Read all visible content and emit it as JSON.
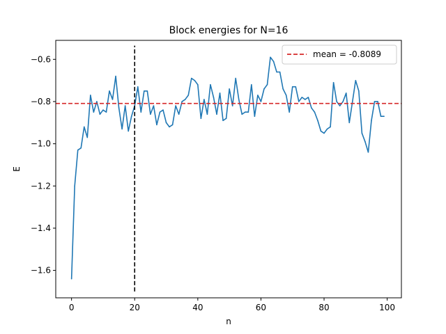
{
  "chart_data": {
    "type": "line",
    "title": "Block energies for N=16",
    "xlabel": "n",
    "ylabel": "E",
    "xlim": [
      -5.0,
      104.5
    ],
    "ylim": [
      -1.73,
      -0.51
    ],
    "xticks": [
      0,
      20,
      40,
      60,
      80,
      100
    ],
    "yticks": [
      -1.6,
      -1.4,
      -1.2,
      -1.0,
      -0.8,
      -0.6
    ],
    "ytick_labels": [
      "−1.6",
      "−1.4",
      "−1.2",
      "−1.0",
      "−0.8",
      "−0.6"
    ],
    "grid": false,
    "legend_position": "top-right",
    "series": [
      {
        "color": "#1f77b4",
        "x": [
          0,
          1,
          2,
          3,
          4,
          5,
          6,
          7,
          8,
          9,
          10,
          11,
          12,
          13,
          14,
          15,
          16,
          17,
          18,
          19,
          20,
          21,
          22,
          23,
          24,
          25,
          26,
          27,
          28,
          29,
          30,
          31,
          32,
          33,
          34,
          35,
          36,
          37,
          38,
          39,
          40,
          41,
          42,
          43,
          44,
          45,
          46,
          47,
          48,
          49,
          50,
          51,
          52,
          53,
          54,
          55,
          56,
          57,
          58,
          59,
          60,
          61,
          62,
          63,
          64,
          65,
          66,
          67,
          68,
          69,
          70,
          71,
          72,
          73,
          74,
          75,
          76,
          77,
          78,
          79,
          80,
          81,
          82,
          83,
          84,
          85,
          86,
          87,
          88,
          89,
          90,
          91,
          92,
          93,
          94,
          95,
          96,
          97,
          98,
          99
        ],
        "y": [
          -1.64,
          -1.2,
          -1.03,
          -1.02,
          -0.92,
          -0.97,
          -0.77,
          -0.85,
          -0.8,
          -0.86,
          -0.84,
          -0.85,
          -0.75,
          -0.79,
          -0.68,
          -0.83,
          -0.93,
          -0.82,
          -0.94,
          -0.87,
          -0.82,
          -0.73,
          -0.85,
          -0.75,
          -0.75,
          -0.86,
          -0.82,
          -0.91,
          -0.85,
          -0.84,
          -0.9,
          -0.92,
          -0.91,
          -0.82,
          -0.86,
          -0.8,
          -0.79,
          -0.77,
          -0.69,
          -0.7,
          -0.72,
          -0.88,
          -0.79,
          -0.86,
          -0.72,
          -0.78,
          -0.86,
          -0.76,
          -0.89,
          -0.88,
          -0.74,
          -0.82,
          -0.69,
          -0.79,
          -0.86,
          -0.85,
          -0.85,
          -0.72,
          -0.87,
          -0.77,
          -0.8,
          -0.74,
          -0.72,
          -0.59,
          -0.61,
          -0.66,
          -0.66,
          -0.74,
          -0.77,
          -0.85,
          -0.73,
          -0.73,
          -0.8,
          -0.78,
          -0.79,
          -0.78,
          -0.83,
          -0.85,
          -0.89,
          -0.94,
          -0.95,
          -0.93,
          -0.92,
          -0.71,
          -0.8,
          -0.82,
          -0.8,
          -0.76,
          -0.9,
          -0.8,
          -0.7,
          -0.75,
          -0.95,
          -0.99,
          -1.04,
          -0.89,
          -0.8,
          -0.8,
          -0.87,
          -0.87
        ]
      }
    ],
    "reference_lines": [
      {
        "orientation": "horizontal",
        "value": -0.8089,
        "x_range": [
          -5.0,
          104.5
        ],
        "color": "#d62728",
        "style": "dashed",
        "label": "mean = -0.8089"
      },
      {
        "orientation": "vertical",
        "value": 20,
        "y_range": [
          -1.7,
          -0.535
        ],
        "color": "#000000",
        "style": "dashed"
      }
    ],
    "legend": [
      {
        "label": "mean = -0.8089",
        "color": "#d62728",
        "style": "dashed"
      }
    ]
  }
}
